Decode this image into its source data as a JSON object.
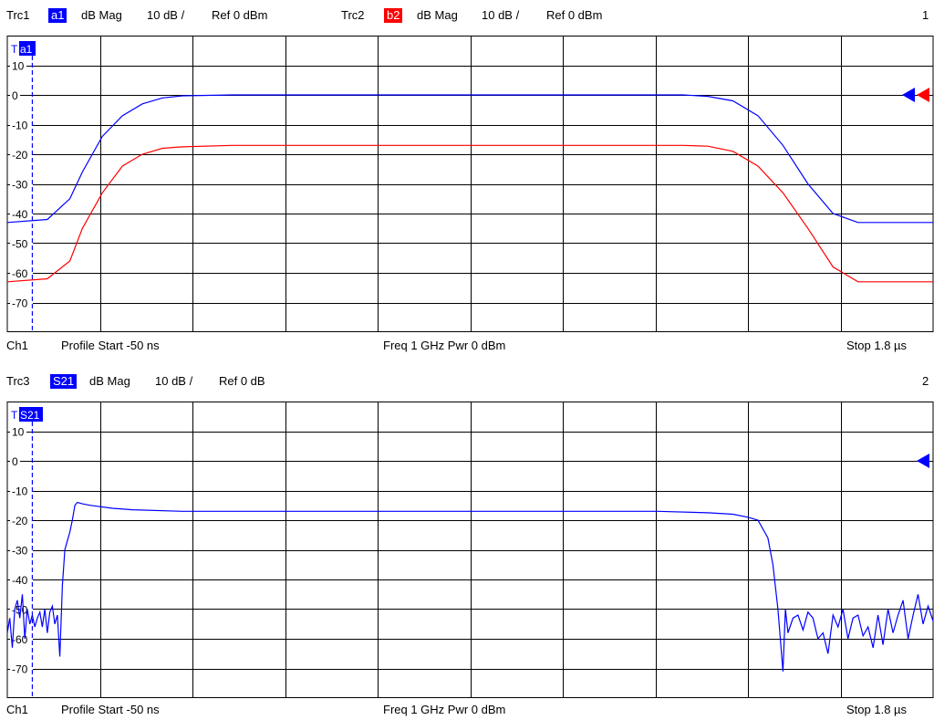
{
  "diagram1": {
    "id": "1",
    "traces": [
      {
        "name": "Trc1",
        "tag": "a1",
        "tag_color": "#0000ff",
        "format": "dB Mag",
        "scale": "10 dB /",
        "ref": "Ref 0 dBm"
      },
      {
        "name": "Trc2",
        "tag": "b2",
        "tag_color": "#ff0000",
        "format": "dB Mag",
        "scale": "10 dB /",
        "ref": "Ref 0 dBm"
      }
    ],
    "marker_tag": "a1",
    "footer": {
      "channel": "Ch1",
      "start": "Profile Start  -50 ns",
      "center": "Freq 1 GHz  Pwr 0 dBm",
      "stop": "Stop  1.8 µs"
    }
  },
  "diagram2": {
    "id": "2",
    "traces": [
      {
        "name": "Trc3",
        "tag": "S21",
        "tag_color": "#0000ff",
        "format": "dB Mag",
        "scale": "10 dB /",
        "ref": "Ref 0 dB"
      }
    ],
    "marker_tag": "S21",
    "footer": {
      "channel": "Ch1",
      "start": "Profile Start  -50 ns",
      "center": "Freq 1 GHz  Pwr 0 dBm",
      "stop": "Stop  1.8 µs"
    }
  },
  "chart_data": [
    {
      "type": "line",
      "x_unit": "ns",
      "xlim": [
        -50,
        1800
      ],
      "ylim": [
        -80,
        20
      ],
      "yticks": [
        "10",
        "0",
        "-10",
        "-20",
        "-30",
        "-40",
        "-50",
        "-60",
        "-70"
      ],
      "grid": true,
      "series": [
        {
          "name": "Trc1",
          "color": "#0000ff",
          "x": [
            -50,
            30,
            75,
            100,
            140,
            180,
            220,
            260,
            300,
            400,
            1300,
            1350,
            1400,
            1450,
            1500,
            1550,
            1600,
            1650,
            1800
          ],
          "y": [
            -43,
            -42,
            -35,
            -26,
            -14,
            -7,
            -3,
            -1,
            -0.3,
            0,
            0,
            -0.5,
            -2,
            -7,
            -17,
            -30,
            -40,
            -43,
            -43
          ]
        },
        {
          "name": "Trc2",
          "color": "#ff0000",
          "x": [
            -50,
            30,
            75,
            100,
            140,
            180,
            220,
            260,
            300,
            400,
            1300,
            1350,
            1400,
            1450,
            1500,
            1550,
            1600,
            1650,
            1800
          ],
          "y": [
            -63,
            -62,
            -56,
            -45,
            -33,
            -24,
            -20,
            -18,
            -17.5,
            -17,
            -17,
            -17.3,
            -19,
            -24,
            -33,
            -45,
            -58,
            -63,
            -63
          ]
        }
      ]
    },
    {
      "type": "line",
      "x_unit": "ns",
      "xlim": [
        -50,
        1800
      ],
      "ylim": [
        -80,
        20
      ],
      "yticks": [
        "10",
        "0",
        "-10",
        "-20",
        "-30",
        "-40",
        "-50",
        "-60",
        "-70"
      ],
      "grid": true,
      "series": [
        {
          "name": "Trc3",
          "color": "#0000ff",
          "x": [
            -50,
            -45,
            -40,
            -35,
            -30,
            -25,
            -20,
            -15,
            -10,
            -5,
            0,
            5,
            10,
            15,
            20,
            25,
            30,
            35,
            40,
            45,
            50,
            55,
            60,
            65,
            70,
            75,
            80,
            85,
            90,
            100,
            115,
            160,
            200,
            300,
            400,
            600,
            800,
            1000,
            1150,
            1250,
            1350,
            1400,
            1430,
            1450,
            1470,
            1480,
            1490,
            1500,
            1505,
            1510,
            1520,
            1530,
            1540,
            1550,
            1560,
            1570,
            1580,
            1590,
            1600,
            1610,
            1620,
            1630,
            1640,
            1650,
            1660,
            1670,
            1680,
            1690,
            1700,
            1710,
            1720,
            1730,
            1740,
            1750,
            1760,
            1770,
            1780,
            1790,
            1800
          ],
          "y": [
            -58,
            -53,
            -63,
            -50,
            -47,
            -53,
            -45,
            -60,
            -50,
            -55,
            -52,
            -56,
            -53,
            -51,
            -56,
            -50,
            -58,
            -51,
            -49,
            -55,
            -52,
            -66,
            -42,
            -30,
            -27,
            -24,
            -20,
            -15,
            -14,
            -14.5,
            -15,
            -16,
            -16.5,
            -17,
            -17,
            -17,
            -17,
            -17,
            -17,
            -17,
            -17.5,
            -18,
            -19,
            -20,
            -26,
            -35,
            -50,
            -71,
            -50,
            -58,
            -53,
            -52,
            -57,
            -51,
            -53,
            -60,
            -58,
            -65,
            -52,
            -56,
            -50,
            -60,
            -53,
            -52,
            -59,
            -56,
            -63,
            -52,
            -62,
            -50,
            -58,
            -52,
            -47,
            -60,
            -52,
            -45,
            -55,
            -49,
            -54
          ]
        }
      ]
    }
  ]
}
